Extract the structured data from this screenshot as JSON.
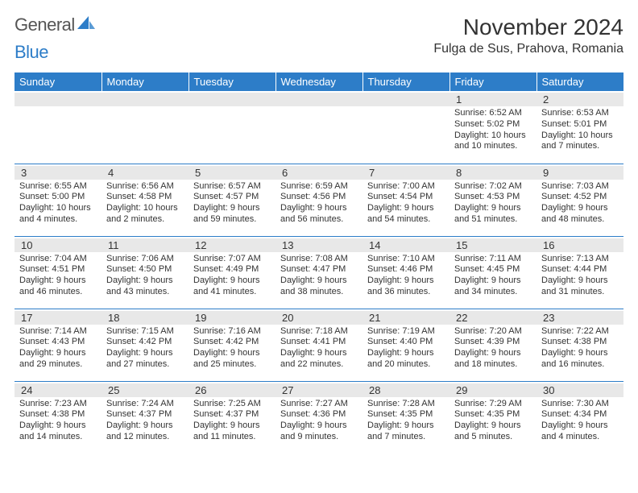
{
  "brand": {
    "part1": "General",
    "part2": "Blue"
  },
  "title": "November 2024",
  "subtitle": "Fulga de Sus, Prahova, Romania",
  "day_header_bg": "#2d7dc8",
  "day_header_fg": "#ffffff",
  "daynum_bg": "#e8e8e8",
  "cell_border": "#2d7dc8",
  "days_of_week": [
    "Sunday",
    "Monday",
    "Tuesday",
    "Wednesday",
    "Thursday",
    "Friday",
    "Saturday"
  ],
  "weeks": [
    [
      {
        "day": "",
        "sunrise": "",
        "sunset": "",
        "daylight": ""
      },
      {
        "day": "",
        "sunrise": "",
        "sunset": "",
        "daylight": ""
      },
      {
        "day": "",
        "sunrise": "",
        "sunset": "",
        "daylight": ""
      },
      {
        "day": "",
        "sunrise": "",
        "sunset": "",
        "daylight": ""
      },
      {
        "day": "",
        "sunrise": "",
        "sunset": "",
        "daylight": ""
      },
      {
        "day": "1",
        "sunrise": "Sunrise: 6:52 AM",
        "sunset": "Sunset: 5:02 PM",
        "daylight": "Daylight: 10 hours and 10 minutes."
      },
      {
        "day": "2",
        "sunrise": "Sunrise: 6:53 AM",
        "sunset": "Sunset: 5:01 PM",
        "daylight": "Daylight: 10 hours and 7 minutes."
      }
    ],
    [
      {
        "day": "3",
        "sunrise": "Sunrise: 6:55 AM",
        "sunset": "Sunset: 5:00 PM",
        "daylight": "Daylight: 10 hours and 4 minutes."
      },
      {
        "day": "4",
        "sunrise": "Sunrise: 6:56 AM",
        "sunset": "Sunset: 4:58 PM",
        "daylight": "Daylight: 10 hours and 2 minutes."
      },
      {
        "day": "5",
        "sunrise": "Sunrise: 6:57 AM",
        "sunset": "Sunset: 4:57 PM",
        "daylight": "Daylight: 9 hours and 59 minutes."
      },
      {
        "day": "6",
        "sunrise": "Sunrise: 6:59 AM",
        "sunset": "Sunset: 4:56 PM",
        "daylight": "Daylight: 9 hours and 56 minutes."
      },
      {
        "day": "7",
        "sunrise": "Sunrise: 7:00 AM",
        "sunset": "Sunset: 4:54 PM",
        "daylight": "Daylight: 9 hours and 54 minutes."
      },
      {
        "day": "8",
        "sunrise": "Sunrise: 7:02 AM",
        "sunset": "Sunset: 4:53 PM",
        "daylight": "Daylight: 9 hours and 51 minutes."
      },
      {
        "day": "9",
        "sunrise": "Sunrise: 7:03 AM",
        "sunset": "Sunset: 4:52 PM",
        "daylight": "Daylight: 9 hours and 48 minutes."
      }
    ],
    [
      {
        "day": "10",
        "sunrise": "Sunrise: 7:04 AM",
        "sunset": "Sunset: 4:51 PM",
        "daylight": "Daylight: 9 hours and 46 minutes."
      },
      {
        "day": "11",
        "sunrise": "Sunrise: 7:06 AM",
        "sunset": "Sunset: 4:50 PM",
        "daylight": "Daylight: 9 hours and 43 minutes."
      },
      {
        "day": "12",
        "sunrise": "Sunrise: 7:07 AM",
        "sunset": "Sunset: 4:49 PM",
        "daylight": "Daylight: 9 hours and 41 minutes."
      },
      {
        "day": "13",
        "sunrise": "Sunrise: 7:08 AM",
        "sunset": "Sunset: 4:47 PM",
        "daylight": "Daylight: 9 hours and 38 minutes."
      },
      {
        "day": "14",
        "sunrise": "Sunrise: 7:10 AM",
        "sunset": "Sunset: 4:46 PM",
        "daylight": "Daylight: 9 hours and 36 minutes."
      },
      {
        "day": "15",
        "sunrise": "Sunrise: 7:11 AM",
        "sunset": "Sunset: 4:45 PM",
        "daylight": "Daylight: 9 hours and 34 minutes."
      },
      {
        "day": "16",
        "sunrise": "Sunrise: 7:13 AM",
        "sunset": "Sunset: 4:44 PM",
        "daylight": "Daylight: 9 hours and 31 minutes."
      }
    ],
    [
      {
        "day": "17",
        "sunrise": "Sunrise: 7:14 AM",
        "sunset": "Sunset: 4:43 PM",
        "daylight": "Daylight: 9 hours and 29 minutes."
      },
      {
        "day": "18",
        "sunrise": "Sunrise: 7:15 AM",
        "sunset": "Sunset: 4:42 PM",
        "daylight": "Daylight: 9 hours and 27 minutes."
      },
      {
        "day": "19",
        "sunrise": "Sunrise: 7:16 AM",
        "sunset": "Sunset: 4:42 PM",
        "daylight": "Daylight: 9 hours and 25 minutes."
      },
      {
        "day": "20",
        "sunrise": "Sunrise: 7:18 AM",
        "sunset": "Sunset: 4:41 PM",
        "daylight": "Daylight: 9 hours and 22 minutes."
      },
      {
        "day": "21",
        "sunrise": "Sunrise: 7:19 AM",
        "sunset": "Sunset: 4:40 PM",
        "daylight": "Daylight: 9 hours and 20 minutes."
      },
      {
        "day": "22",
        "sunrise": "Sunrise: 7:20 AM",
        "sunset": "Sunset: 4:39 PM",
        "daylight": "Daylight: 9 hours and 18 minutes."
      },
      {
        "day": "23",
        "sunrise": "Sunrise: 7:22 AM",
        "sunset": "Sunset: 4:38 PM",
        "daylight": "Daylight: 9 hours and 16 minutes."
      }
    ],
    [
      {
        "day": "24",
        "sunrise": "Sunrise: 7:23 AM",
        "sunset": "Sunset: 4:38 PM",
        "daylight": "Daylight: 9 hours and 14 minutes."
      },
      {
        "day": "25",
        "sunrise": "Sunrise: 7:24 AM",
        "sunset": "Sunset: 4:37 PM",
        "daylight": "Daylight: 9 hours and 12 minutes."
      },
      {
        "day": "26",
        "sunrise": "Sunrise: 7:25 AM",
        "sunset": "Sunset: 4:37 PM",
        "daylight": "Daylight: 9 hours and 11 minutes."
      },
      {
        "day": "27",
        "sunrise": "Sunrise: 7:27 AM",
        "sunset": "Sunset: 4:36 PM",
        "daylight": "Daylight: 9 hours and 9 minutes."
      },
      {
        "day": "28",
        "sunrise": "Sunrise: 7:28 AM",
        "sunset": "Sunset: 4:35 PM",
        "daylight": "Daylight: 9 hours and 7 minutes."
      },
      {
        "day": "29",
        "sunrise": "Sunrise: 7:29 AM",
        "sunset": "Sunset: 4:35 PM",
        "daylight": "Daylight: 9 hours and 5 minutes."
      },
      {
        "day": "30",
        "sunrise": "Sunrise: 7:30 AM",
        "sunset": "Sunset: 4:34 PM",
        "daylight": "Daylight: 9 hours and 4 minutes."
      }
    ]
  ]
}
